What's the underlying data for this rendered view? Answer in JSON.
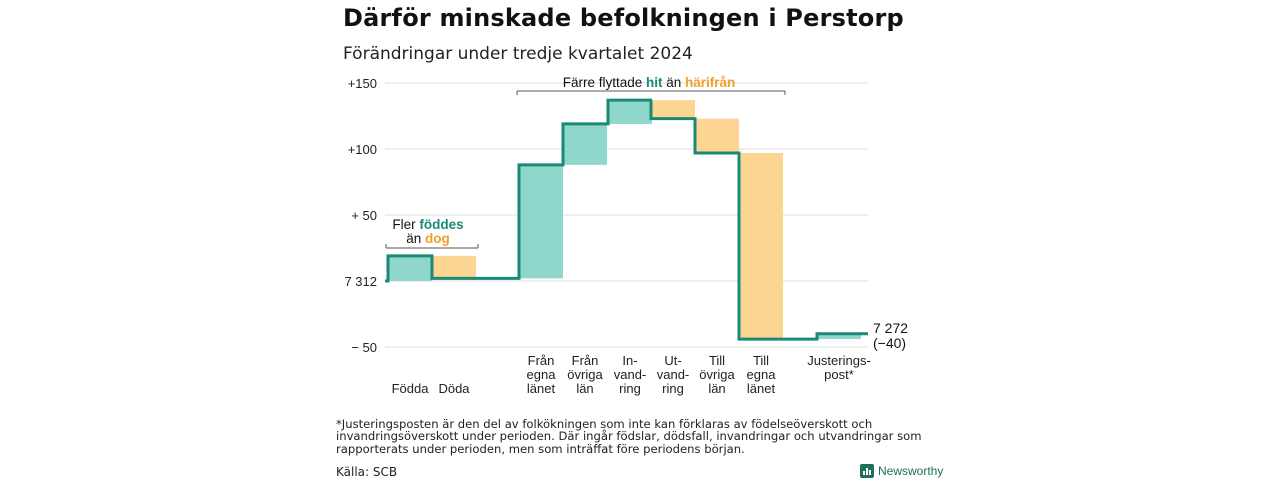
{
  "title": "Därför minskade befolkningen i Perstorp",
  "subtitle": "Förändringar under tredje kvartalet 2024",
  "footnote": "*Justeringsposten är den del av folkökningen som inte kan förklaras av födelseöverskott och invandringsöverskott under perioden. Där ingår födslar, dödsfall, invandringar och utvandringar som rapporterats under perioden, men som inträffat före periodens början.",
  "source": "Källa: SCB",
  "brand": "Newsworthy",
  "colors": {
    "increase": "#8fd6cb",
    "decrease": "#fbd591",
    "line": "#1a8a77",
    "teal_text": "#1a8a77",
    "orange_text": "#f0a030",
    "grid": "#dddddd"
  },
  "chart_data": {
    "type": "waterfall",
    "baseline_value": 7312,
    "end_value": 7272,
    "end_labels": [
      "7 272",
      "(−40)"
    ],
    "ylim": [
      -50,
      150
    ],
    "yticks": [
      {
        "value": 150,
        "label": "+150"
      },
      {
        "value": 100,
        "label": "+100"
      },
      {
        "value": 50,
        "label": "+ 50"
      },
      {
        "value": 0,
        "label": "7 312"
      },
      {
        "value": -50,
        "label": "− 50"
      }
    ],
    "categories": [
      {
        "label": [
          "Födda"
        ],
        "change": 19
      },
      {
        "label": [
          "Döda"
        ],
        "change": -17
      },
      {
        "label": [
          "Från",
          "egna",
          "länet"
        ],
        "change": 86
      },
      {
        "label": [
          "Från",
          "övriga",
          "län"
        ],
        "change": 31
      },
      {
        "label": [
          "In-",
          "vand-",
          "ring"
        ],
        "change": 18
      },
      {
        "label": [
          "Ut-",
          "vand-",
          "ring"
        ],
        "change": -14
      },
      {
        "label": [
          "Till",
          "övriga",
          "län"
        ],
        "change": -26
      },
      {
        "label": [
          "Till",
          "egna",
          "länet"
        ],
        "change": -141
      },
      {
        "label": [
          "Justerings-",
          "post*"
        ],
        "change": 4
      }
    ],
    "annotations": [
      {
        "parts": [
          {
            "text": "Fler ",
            "style": "plain"
          },
          {
            "text": "föddes",
            "style": "teal"
          }
        ],
        "parts2": [
          {
            "text": "än ",
            "style": "plain"
          },
          {
            "text": "dog",
            "style": "orange"
          }
        ]
      },
      {
        "parts": [
          {
            "text": "Färre flyttade ",
            "style": "plain"
          },
          {
            "text": "hit",
            "style": "teal"
          },
          {
            "text": " än ",
            "style": "plain"
          },
          {
            "text": "härifrån",
            "style": "orange"
          }
        ]
      }
    ]
  }
}
